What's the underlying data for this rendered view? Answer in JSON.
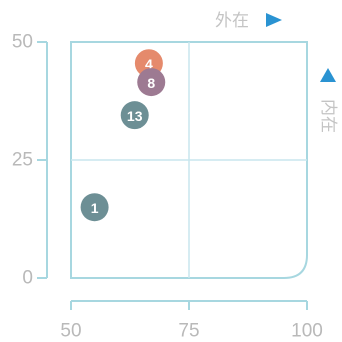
{
  "chart_data": {
    "type": "scatter",
    "x_axis_label": "外在",
    "y_axis_label": "内在",
    "xlim": [
      50,
      100
    ],
    "ylim": [
      0,
      50
    ],
    "x_ticks": [
      "50",
      "75",
      "100"
    ],
    "y_ticks": [
      "0",
      "25",
      "50"
    ],
    "midlines": {
      "x": 75,
      "y": 25
    },
    "points": [
      {
        "label": "1",
        "x": 55,
        "y": 15,
        "color": "#6d8f95"
      },
      {
        "label": "13",
        "x": 63.5,
        "y": 34.5,
        "color": "#6d8f95"
      },
      {
        "label": "4",
        "x": 66.5,
        "y": 45.5,
        "color": "#e58a6c"
      },
      {
        "label": "8",
        "x": 67,
        "y": 41.5,
        "color": "#9d7a92"
      }
    ]
  },
  "colors": {
    "frame": "#a7d7e0",
    "midline": "#c8e6ee",
    "axis_arrow": "#2a93d2"
  }
}
